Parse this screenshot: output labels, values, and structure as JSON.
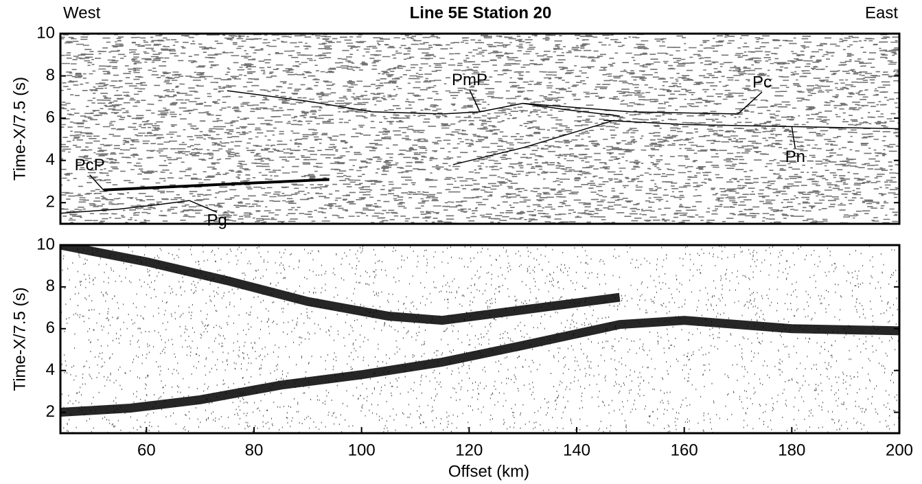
{
  "chart_data": [
    {
      "type": "line",
      "title": "Line 5E Station 20",
      "annotations": [
        "West",
        "East"
      ],
      "ylabel": "Time-X/7.5 (s)",
      "xlim": [
        44,
        200
      ],
      "ylim": [
        1,
        10
      ],
      "yticks": [
        2,
        4,
        6,
        8,
        10
      ],
      "series": [
        {
          "name": "Pg",
          "color": "#000000",
          "x": [
            44,
            55,
            62,
            68,
            100,
            117,
            130,
            147
          ],
          "values": [
            1.5,
            1.7,
            1.9,
            2.1,
            null,
            3.8,
            4.6,
            5.9
          ]
        },
        {
          "name": "PcP",
          "color": "#000000",
          "x": [
            52,
            94
          ],
          "values": [
            2.6,
            3.1
          ]
        },
        {
          "name": "PmP",
          "color": "#000000",
          "x": [
            75,
            90,
            102,
            115,
            122,
            130,
            138,
            148
          ],
          "values": [
            7.3,
            6.8,
            6.3,
            6.2,
            6.3,
            6.7,
            6.4,
            6.1
          ]
        },
        {
          "name": "Pc",
          "color": "#000000",
          "x": [
            130,
            150,
            170
          ],
          "values": [
            6.7,
            6.3,
            6.2
          ]
        },
        {
          "name": "Pn",
          "color": "#000000",
          "x": [
            145,
            160,
            180,
            200
          ],
          "values": [
            5.9,
            5.7,
            5.6,
            5.5
          ]
        }
      ]
    },
    {
      "type": "line",
      "ylabel": "Time-X/7.5 (s)",
      "xlabel": "Offset (km)",
      "xlim": [
        44,
        200
      ],
      "xticks": [
        60,
        80,
        100,
        120,
        140,
        160,
        180,
        200
      ],
      "ylim": [
        1,
        10
      ],
      "yticks": [
        2,
        4,
        6,
        8,
        10
      ],
      "series": [
        {
          "color": "#000000",
          "x": [
            44,
            60,
            75,
            90,
            105,
            115,
            130,
            148
          ],
          "values": [
            10,
            9.2,
            8.3,
            7.3,
            6.6,
            6.4,
            6.9,
            7.5
          ]
        },
        {
          "color": "#000000",
          "x": [
            44,
            57,
            70,
            85,
            100,
            115,
            130,
            148,
            160,
            180,
            200
          ],
          "values": [
            2,
            2.2,
            2.6,
            3.3,
            3.8,
            4.4,
            5.2,
            6.2,
            6.4,
            6.0,
            5.9
          ]
        }
      ]
    }
  ]
}
